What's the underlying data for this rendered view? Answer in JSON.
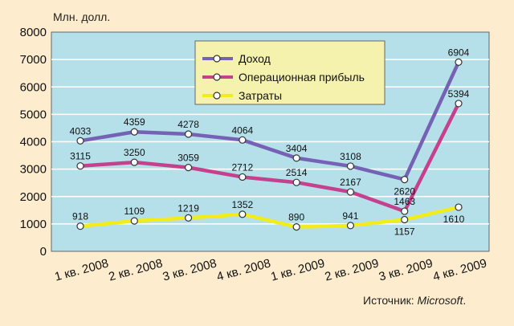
{
  "chart_data": {
    "type": "line",
    "ylabel": "Млн. долл.",
    "ylim": [
      0,
      8000
    ],
    "yticks": [
      0,
      1000,
      2000,
      3000,
      4000,
      5000,
      6000,
      7000,
      8000
    ],
    "categories": [
      "1 кв. 2008",
      "2 кв. 2008",
      "3 кв. 2008",
      "4 кв. 2008",
      "1 кв. 2009",
      "2 кв. 2009",
      "3 кв. 2009",
      "4 кв. 2009"
    ],
    "grid": true,
    "legend_position": "top-center",
    "series": [
      {
        "name": "Доход",
        "color": "#7662b4",
        "values": [
          4033,
          4359,
          4278,
          4064,
          3404,
          3108,
          2620,
          6904
        ]
      },
      {
        "name": "Операционная прибыль",
        "color": "#c6418d",
        "values": [
          3115,
          3250,
          3059,
          2712,
          2514,
          2167,
          1463,
          5394
        ]
      },
      {
        "name": "Затраты",
        "color": "#f2ec1a",
        "values": [
          918,
          1109,
          1219,
          1352,
          890,
          941,
          1157,
          1610
        ]
      }
    ]
  },
  "colors": {
    "page_background": "#fdeccd",
    "plot_background": "#b5e0ea",
    "gridline": "#ffffff",
    "legend_background": "#f5f2ad"
  },
  "source": {
    "label": "Источник: ",
    "name": "Microsoft"
  }
}
